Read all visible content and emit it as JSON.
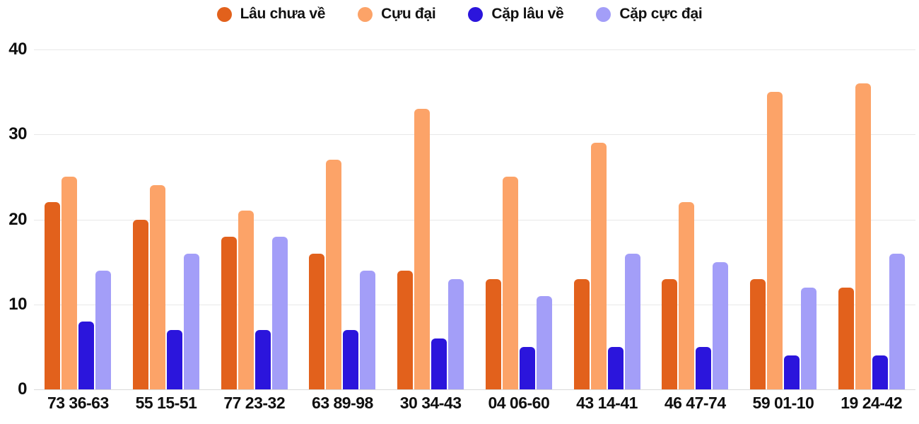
{
  "chart_data": {
    "type": "bar",
    "title": "",
    "xlabel": "",
    "ylabel": "",
    "categories": [
      "73 36-63",
      "55 15-51",
      "77 23-32",
      "63 89-98",
      "30 34-43",
      "04 06-60",
      "43 14-41",
      "46 47-74",
      "59 01-10",
      "19 24-42"
    ],
    "series": [
      {
        "name": "Lâu chưa về",
        "color": "#e2611c",
        "values": [
          22,
          20,
          18,
          16,
          14,
          13,
          13,
          13,
          13,
          12
        ]
      },
      {
        "name": "Cựu đại",
        "color": "#fca368",
        "values": [
          25,
          24,
          21,
          27,
          33,
          25,
          29,
          22,
          35,
          36
        ]
      },
      {
        "name": "Cặp lâu về",
        "color": "#2b15dc",
        "values": [
          8,
          7,
          7,
          7,
          6,
          5,
          5,
          5,
          4,
          4
        ]
      },
      {
        "name": "Cặp cực đại",
        "color": "#a39ef8",
        "values": [
          14,
          16,
          18,
          14,
          13,
          11,
          16,
          15,
          12,
          16
        ]
      }
    ],
    "y_ticks": [
      0,
      10,
      20,
      30,
      40
    ],
    "ylim": [
      0,
      40
    ],
    "grid": true,
    "legend_position": "top",
    "colors": {
      "grid": "#e8e8e8",
      "baseline": "#d9d9d9",
      "text": "#0f0f0f"
    }
  }
}
